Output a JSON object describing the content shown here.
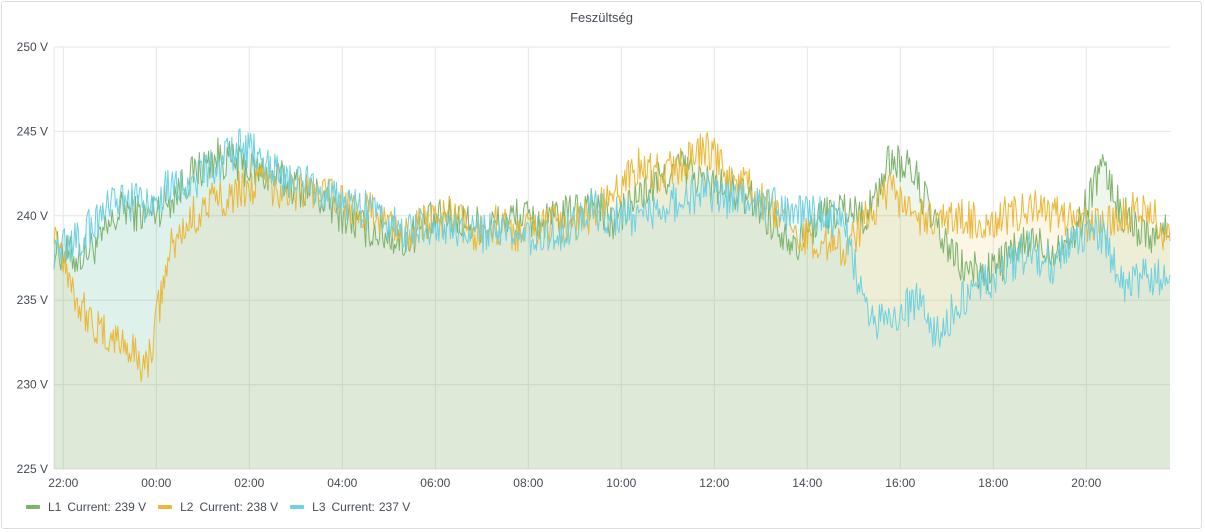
{
  "panel": {
    "title": "Feszültség"
  },
  "colors": {
    "L1": "#7eb26d",
    "L2": "#eab839",
    "L3": "#6ed0e0",
    "grid": "#e4e4e4",
    "text": "#464c54"
  },
  "legend": [
    {
      "name": "L1",
      "current_label": "Current:",
      "current_value": "239 V"
    },
    {
      "name": "L2",
      "current_label": "Current:",
      "current_value": "238 V"
    },
    {
      "name": "L3",
      "current_label": "Current:",
      "current_value": "237 V"
    }
  ],
  "chart_data": {
    "type": "line",
    "title": "Feszültség",
    "xlabel": "",
    "ylabel": "",
    "x_tick_labels": [
      "22:00",
      "00:00",
      "02:00",
      "04:00",
      "06:00",
      "08:00",
      "10:00",
      "12:00",
      "14:00",
      "16:00",
      "18:00",
      "20:00"
    ],
    "y_tick_labels": [
      "250 V",
      "245 V",
      "240 V",
      "235 V",
      "230 V",
      "225 V"
    ],
    "ylim": [
      225,
      250
    ],
    "xlim_hours": [
      21.8,
      45.8
    ],
    "x_ticks_hours": [
      22,
      24,
      26,
      28,
      30,
      32,
      34,
      36,
      38,
      40,
      42,
      44
    ],
    "y_ticks": [
      250,
      245,
      240,
      235,
      230,
      225
    ],
    "grid": true,
    "fill": true,
    "legend_position": "bottom-left",
    "x": [
      21.8,
      22.3,
      22.8,
      23.3,
      23.8,
      24.3,
      24.8,
      25.3,
      25.8,
      26.3,
      26.8,
      27.3,
      27.8,
      28.3,
      28.8,
      29.3,
      29.8,
      30.3,
      30.8,
      31.3,
      31.8,
      32.3,
      32.8,
      33.3,
      33.8,
      34.3,
      34.8,
      35.3,
      35.8,
      36.3,
      36.8,
      37.3,
      37.8,
      38.3,
      38.8,
      39.3,
      39.8,
      40.3,
      40.8,
      41.3,
      41.8,
      42.3,
      42.8,
      43.3,
      43.8,
      44.3,
      44.8,
      45.3,
      45.8
    ],
    "series": [
      {
        "name": "L1",
        "values": [
          238,
          237.5,
          238.5,
          240.5,
          240,
          241,
          242.5,
          243.5,
          243,
          242.5,
          242,
          241.5,
          240.5,
          239.5,
          239,
          238.5,
          239.5,
          240,
          239.5,
          239.5,
          240,
          239.5,
          240,
          241,
          239.5,
          241,
          242,
          243,
          242,
          241.5,
          241,
          239.5,
          238.5,
          240,
          240.5,
          240,
          243.5,
          242.5,
          239,
          237,
          236.5,
          237.5,
          238.5,
          238,
          239,
          243,
          240,
          239,
          239
        ]
      },
      {
        "name": "L2",
        "values": [
          239.5,
          235,
          233,
          232.5,
          231,
          238,
          240,
          241,
          241.5,
          242,
          241.5,
          241.5,
          241,
          240.5,
          240,
          239,
          239.5,
          240,
          239,
          239.5,
          239,
          239.5,
          239.5,
          240,
          241,
          243,
          242.5,
          243,
          244,
          242.5,
          241.5,
          240,
          239,
          238.5,
          238,
          240,
          241.5,
          240,
          239.5,
          240,
          239.5,
          240,
          240.5,
          240,
          239.5,
          239.5,
          240,
          240.5,
          238.5
        ]
      },
      {
        "name": "L3",
        "values": [
          238,
          238.5,
          240,
          241,
          240.5,
          242,
          242,
          243,
          244,
          243.5,
          242,
          242,
          241,
          240.5,
          240,
          239,
          239.5,
          239,
          239,
          239,
          238.5,
          239,
          239,
          240.5,
          240,
          240,
          240.5,
          241,
          241.5,
          241,
          241,
          240.5,
          240,
          240,
          239.5,
          234,
          233.5,
          235,
          233,
          235,
          236,
          237,
          238,
          237,
          238.5,
          239,
          236,
          236.5,
          236.5
        ]
      }
    ]
  }
}
